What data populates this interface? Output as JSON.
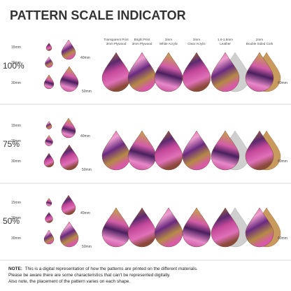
{
  "title": "PATTERN SCALE INDICATOR",
  "columns": [
    {
      "line1": "Transparent Print",
      "line2": "3mm Plywood"
    },
    {
      "line1": "Bright Print",
      "line2": "3mm Plywood"
    },
    {
      "line1": "3mm",
      "line2": "White Acrylic"
    },
    {
      "line1": "3mm",
      "line2": "Clear Acrylic"
    },
    {
      "line1": "1.6-1.8mm",
      "line2": "Leather"
    },
    {
      "line1": "2mm",
      "line2": "Double Sided Cork"
    }
  ],
  "rows": [
    {
      "scale": "100%",
      "sizes": [
        "15mm",
        "20mm",
        "30mm",
        "40mm",
        "50mm"
      ],
      "large_size": "60mm"
    },
    {
      "scale": "75%",
      "sizes": [
        "15mm",
        "20mm",
        "30mm",
        "40mm",
        "50mm"
      ],
      "large_size": "60mm"
    },
    {
      "scale": "50%",
      "sizes": [
        "15mm",
        "20mm",
        "30mm",
        "40mm",
        "50mm"
      ],
      "large_size": "60mm"
    }
  ],
  "note": {
    "label": "NOTE:",
    "lines": [
      "This is a digital representation of how the patterns are printed on the different materials.",
      "Please be aware there are some characteristics that can't be represented digitally.",
      "Also note, the placement of the pattern varies on each shape."
    ]
  }
}
